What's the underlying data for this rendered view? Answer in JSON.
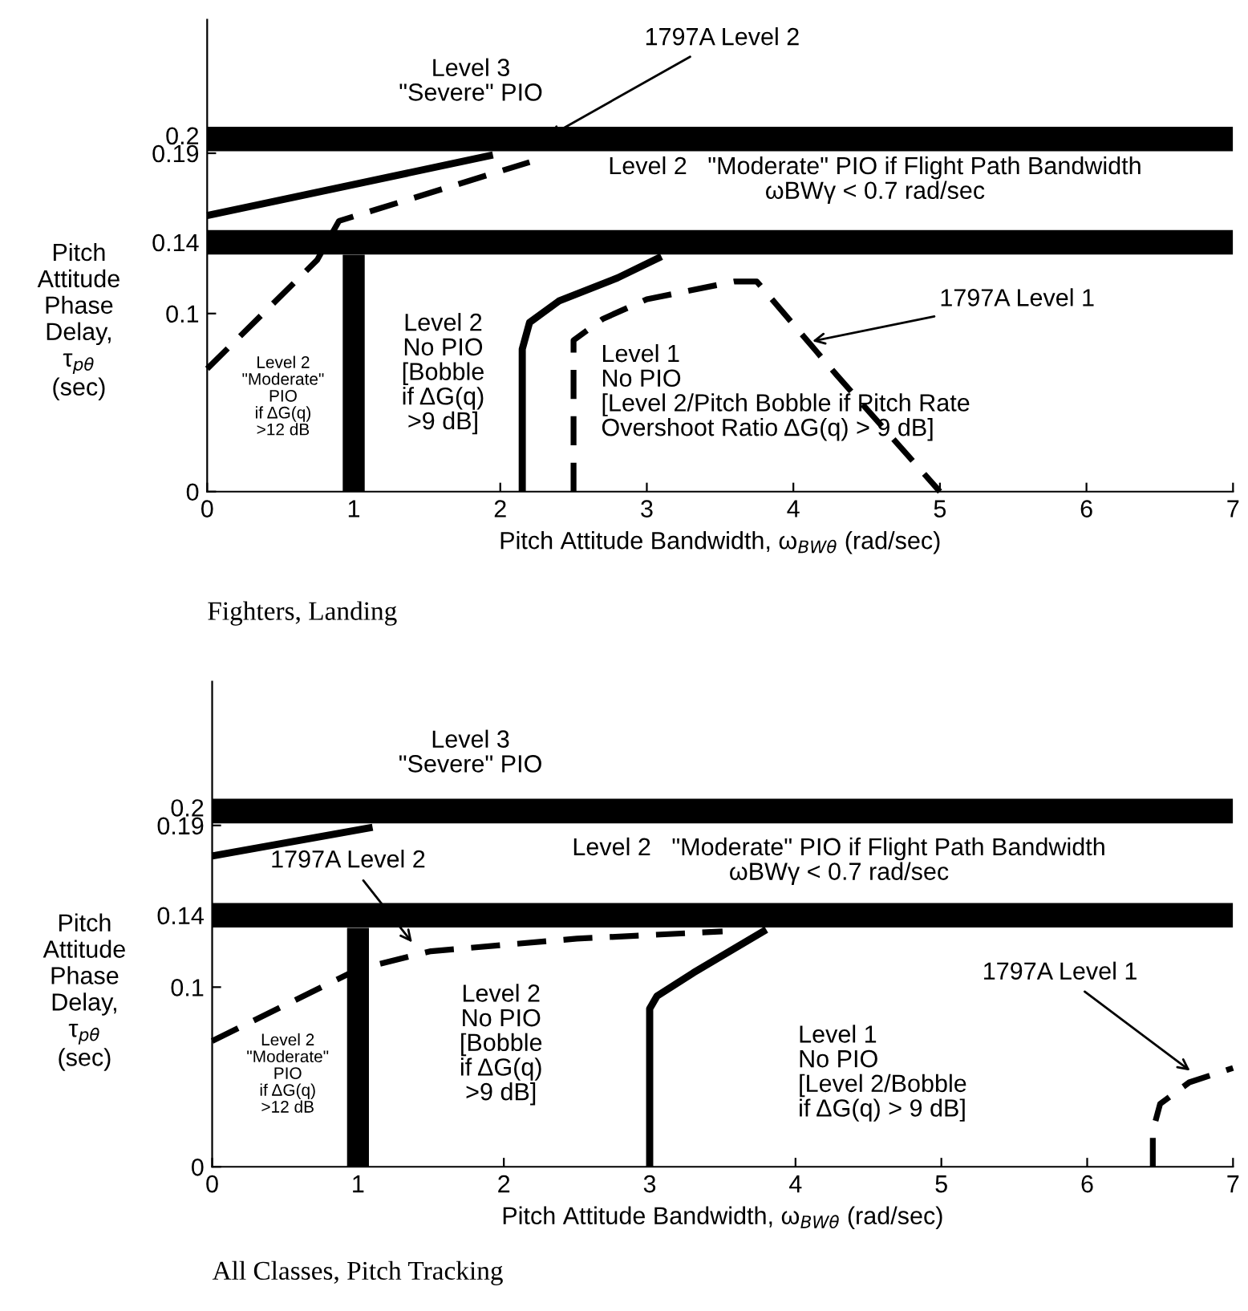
{
  "chart_data": [
    {
      "type": "line",
      "title": "Fighters, Landing",
      "xlabel": "Pitch Attitude Bandwidth, ω$_{BWθ}$ (rad/sec)",
      "ylabel": "Pitch\nAttitude\nPhase\nDelay,\nτ$_{pθ}$\n(sec)",
      "xlim": [
        0,
        7
      ],
      "ylim": [
        0,
        0.265
      ],
      "xticks": [
        0,
        1,
        2,
        3,
        4,
        5,
        6,
        7
      ],
      "yticks": [
        0,
        0.1,
        0.14,
        0.19,
        0.2
      ],
      "ref_lines": [
        {
          "axis": "y",
          "value": 0.198,
          "color": "#000000"
        },
        {
          "axis": "y",
          "value": 0.14,
          "color": "#000000"
        }
      ],
      "series": [
        {
          "type": "bar",
          "color": "#000000",
          "x": [
            1
          ],
          "values": [
            0.133
          ]
        },
        {
          "type": "line",
          "color": "#000000",
          "line_style": "solid",
          "x": [
            0,
            1.95
          ],
          "values": [
            0.155,
            0.189
          ]
        },
        {
          "type": "line",
          "color": "#000000",
          "line_style": "dashed",
          "x": [
            0,
            0.75,
            0.9,
            2.2
          ],
          "values": [
            0.069,
            0.13,
            0.152,
            0.185
          ]
        },
        {
          "type": "line",
          "color": "#000000",
          "line_style": "solid",
          "x": [
            2.15,
            2.15,
            2.2,
            2.4,
            2.8,
            3.1
          ],
          "values": [
            0,
            0.08,
            0.095,
            0.107,
            0.12,
            0.132
          ]
        },
        {
          "type": "line",
          "color": "#000000",
          "line_style": "dashed",
          "x": [
            2.5,
            2.5,
            2.7,
            3.0,
            3.6,
            3.75,
            4.3,
            5.0
          ],
          "values": [
            0,
            0.085,
            0.097,
            0.108,
            0.118,
            0.118,
            0.065,
            0
          ]
        }
      ],
      "annotations": [
        "Level 3\n\"Severe\" PIO",
        {
          "text": "1797A Level 2",
          "x": 2.3,
          "y": 0.198
        },
        "Level 2   \"Moderate\" PIO if Flight Path Bandwidth\nωBWγ < 0.7 rad/sec",
        "Level 2\n\"Moderate\"\nPIO\nif ΔG(q)\n>12 dB",
        "Level 2\nNo PIO\n[Bobble\nif ΔG(q)\n>9 dB]",
        "Level 1\nNo PIO\n[Level 2/Pitch Bobble if Pitch Rate\nOvershoot Ratio ΔG(q) > 9 dB]",
        {
          "text": "1797A Level 1",
          "x": 4.1,
          "y": 0.084
        }
      ]
    },
    {
      "type": "line",
      "title": "All Classes, Pitch Tracking",
      "xlabel": "Pitch Attitude Bandwidth, ω$_{BWθ}$ (rad/sec)",
      "ylabel": "Pitch\nAttitude\nPhase\nDelay,\nτ$_{pθ}$\n(sec)",
      "xlim": [
        0,
        7
      ],
      "ylim": [
        0,
        0.27
      ],
      "xticks": [
        0,
        1,
        2,
        3,
        4,
        5,
        6,
        7
      ],
      "yticks": [
        0,
        0.1,
        0.14,
        0.19,
        0.2
      ],
      "ref_lines": [
        {
          "axis": "y",
          "value": 0.198,
          "color": "#000000"
        },
        {
          "axis": "y",
          "value": 0.14,
          "color": "#000000"
        }
      ],
      "series": [
        {
          "type": "bar",
          "color": "#000000",
          "x": [
            1
          ],
          "values": [
            0.133
          ]
        },
        {
          "type": "line",
          "color": "#000000",
          "line_style": "solid",
          "x": [
            0,
            1.1
          ],
          "values": [
            0.173,
            0.189
          ]
        },
        {
          "type": "line",
          "color": "#000000",
          "line_style": "dashed",
          "x": [
            0,
            0.75,
            1.0,
            1.5,
            2.5,
            3.5
          ],
          "values": [
            0.07,
            0.1,
            0.11,
            0.12,
            0.127,
            0.131
          ]
        },
        {
          "type": "line",
          "color": "#000000",
          "line_style": "solid",
          "x": [
            3.0,
            3.0,
            3.05,
            3.3,
            3.8
          ],
          "values": [
            0,
            0.088,
            0.095,
            0.108,
            0.132
          ]
        },
        {
          "type": "line",
          "color": "#000000",
          "line_style": "dashed",
          "x": [
            6.45,
            6.45,
            6.5,
            6.7,
            7.0
          ],
          "values": [
            0,
            0.02,
            0.035,
            0.047,
            0.055
          ]
        }
      ],
      "annotations": [
        "Level 3\n\"Severe\" PIO",
        "Level 2   \"Moderate\" PIO if Flight Path Bandwidth\nωBWγ < 0.7 rad/sec",
        {
          "text": "1797A Level 2",
          "x": 1.39,
          "y": 0.123
        },
        "Level 2\n\"Moderate\"\nPIO\nif ΔG(q)\n>12 dB",
        "Level 2\nNo PIO\n[Bobble\nif ΔG(q)\n>9 dB]",
        "Level 1\nNo PIO\n[Level 2/Bobble\nif ΔG(q) > 9 dB]",
        {
          "text": "1797A Level 1",
          "x": 6.73,
          "y": 0.052
        }
      ]
    }
  ]
}
